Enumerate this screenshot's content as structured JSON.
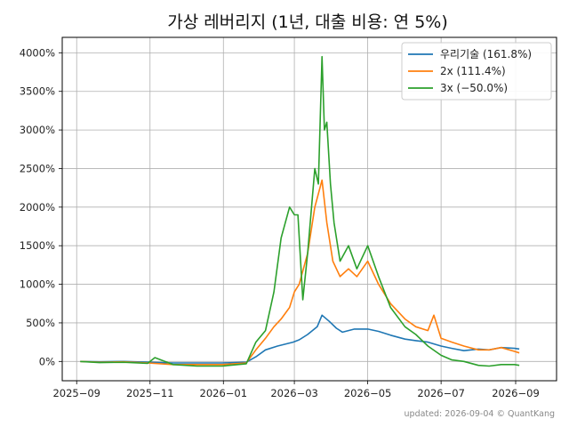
{
  "chart_data": {
    "type": "line",
    "title": "가상 레버리지 (1년, 대출 비용: 연 5%)",
    "xlabel": "",
    "ylabel": "",
    "x_range": [
      "2025-08-20",
      "2026-10-05"
    ],
    "ylim": [
      -250,
      4200
    ],
    "x_ticks": [
      {
        "date": "2025-09-01",
        "label": "2025−09"
      },
      {
        "date": "2025-11-01",
        "label": "2025−11"
      },
      {
        "date": "2026-01-01",
        "label": "2026−01"
      },
      {
        "date": "2026-03-01",
        "label": "2026−03"
      },
      {
        "date": "2026-05-01",
        "label": "2026−05"
      },
      {
        "date": "2026-07-01",
        "label": "2026−07"
      },
      {
        "date": "2026-09-01",
        "label": "2026−09"
      }
    ],
    "y_ticks": [
      {
        "value": 0,
        "label": "0%"
      },
      {
        "value": 500,
        "label": "500%"
      },
      {
        "value": 1000,
        "label": "1000%"
      },
      {
        "value": 1500,
        "label": "1500%"
      },
      {
        "value": 2000,
        "label": "2000%"
      },
      {
        "value": 2500,
        "label": "2500%"
      },
      {
        "value": 3000,
        "label": "3000%"
      },
      {
        "value": 3500,
        "label": "3500%"
      },
      {
        "value": 4000,
        "label": "4000%"
      }
    ],
    "grid": true,
    "legend_position": "top-right",
    "series": [
      {
        "name": "우리기술 (161.8%)",
        "color": "#1f77b4",
        "x": [
          "2025-09-04",
          "2025-09-20",
          "2025-10-10",
          "2025-10-30",
          "2025-11-20",
          "2025-12-10",
          "2025-12-31",
          "2026-01-20",
          "2026-01-28",
          "2026-02-05",
          "2026-02-15",
          "2026-02-28",
          "2026-03-05",
          "2026-03-12",
          "2026-03-20",
          "2026-03-24",
          "2026-03-30",
          "2026-04-05",
          "2026-04-10",
          "2026-04-20",
          "2026-05-01",
          "2026-05-10",
          "2026-05-20",
          "2026-06-01",
          "2026-06-10",
          "2026-06-20",
          "2026-07-01",
          "2026-07-10",
          "2026-07-20",
          "2026-08-01",
          "2026-08-10",
          "2026-08-20",
          "2026-08-31",
          "2026-09-04"
        ],
        "y": [
          0,
          -5,
          0,
          -10,
          -20,
          -20,
          -20,
          -10,
          60,
          150,
          200,
          250,
          280,
          350,
          450,
          600,
          520,
          430,
          380,
          420,
          420,
          390,
          340,
          290,
          270,
          250,
          200,
          170,
          140,
          160,
          150,
          180,
          170,
          162
        ]
      },
      {
        "name": "2x (111.4%)",
        "color": "#ff7f0e",
        "x": [
          "2025-09-04",
          "2025-09-20",
          "2025-10-10",
          "2025-10-30",
          "2025-11-20",
          "2025-12-10",
          "2025-12-31",
          "2026-01-20",
          "2026-01-28",
          "2026-02-05",
          "2026-02-12",
          "2026-02-18",
          "2026-02-25",
          "2026-03-01",
          "2026-03-05",
          "2026-03-12",
          "2026-03-18",
          "2026-03-24",
          "2026-03-28",
          "2026-04-02",
          "2026-04-08",
          "2026-04-15",
          "2026-04-22",
          "2026-05-01",
          "2026-05-10",
          "2026-05-20",
          "2026-06-01",
          "2026-06-10",
          "2026-06-20",
          "2026-06-25",
          "2026-07-01",
          "2026-07-10",
          "2026-07-20",
          "2026-08-01",
          "2026-08-10",
          "2026-08-20",
          "2026-08-31",
          "2026-09-04"
        ],
        "y": [
          0,
          -10,
          -5,
          -20,
          -40,
          -40,
          -40,
          -20,
          150,
          300,
          450,
          550,
          700,
          900,
          1000,
          1400,
          2000,
          2350,
          1800,
          1300,
          1100,
          1200,
          1100,
          1300,
          1000,
          750,
          550,
          450,
          400,
          600,
          300,
          250,
          200,
          150,
          150,
          180,
          130,
          111
        ]
      },
      {
        "name": "3x (−50.0%)",
        "color": "#2ca02c",
        "x": [
          "2025-09-04",
          "2025-09-20",
          "2025-10-10",
          "2025-10-30",
          "2025-11-05",
          "2025-11-20",
          "2025-12-10",
          "2025-12-31",
          "2026-01-20",
          "2026-01-28",
          "2026-02-05",
          "2026-02-12",
          "2026-02-18",
          "2026-02-25",
          "2026-03-01",
          "2026-03-04",
          "2026-03-08",
          "2026-03-12",
          "2026-03-18",
          "2026-03-21",
          "2026-03-24",
          "2026-03-26",
          "2026-03-28",
          "2026-03-31",
          "2026-04-03",
          "2026-04-08",
          "2026-04-15",
          "2026-04-22",
          "2026-05-01",
          "2026-05-10",
          "2026-05-20",
          "2026-06-01",
          "2026-06-10",
          "2026-06-20",
          "2026-07-01",
          "2026-07-10",
          "2026-07-20",
          "2026-08-01",
          "2026-08-10",
          "2026-08-20",
          "2026-08-31",
          "2026-09-04"
        ],
        "y": [
          0,
          -15,
          -10,
          -25,
          50,
          -40,
          -60,
          -60,
          -30,
          250,
          400,
          900,
          1600,
          2000,
          1900,
          1900,
          800,
          1400,
          2500,
          2300,
          3950,
          3000,
          3100,
          2300,
          1800,
          1300,
          1500,
          1200,
          1500,
          1100,
          700,
          450,
          350,
          200,
          80,
          20,
          0,
          -50,
          -60,
          -40,
          -40,
          -50
        ]
      }
    ],
    "footnote": "updated: 2026-09-04 © QuantKang"
  }
}
